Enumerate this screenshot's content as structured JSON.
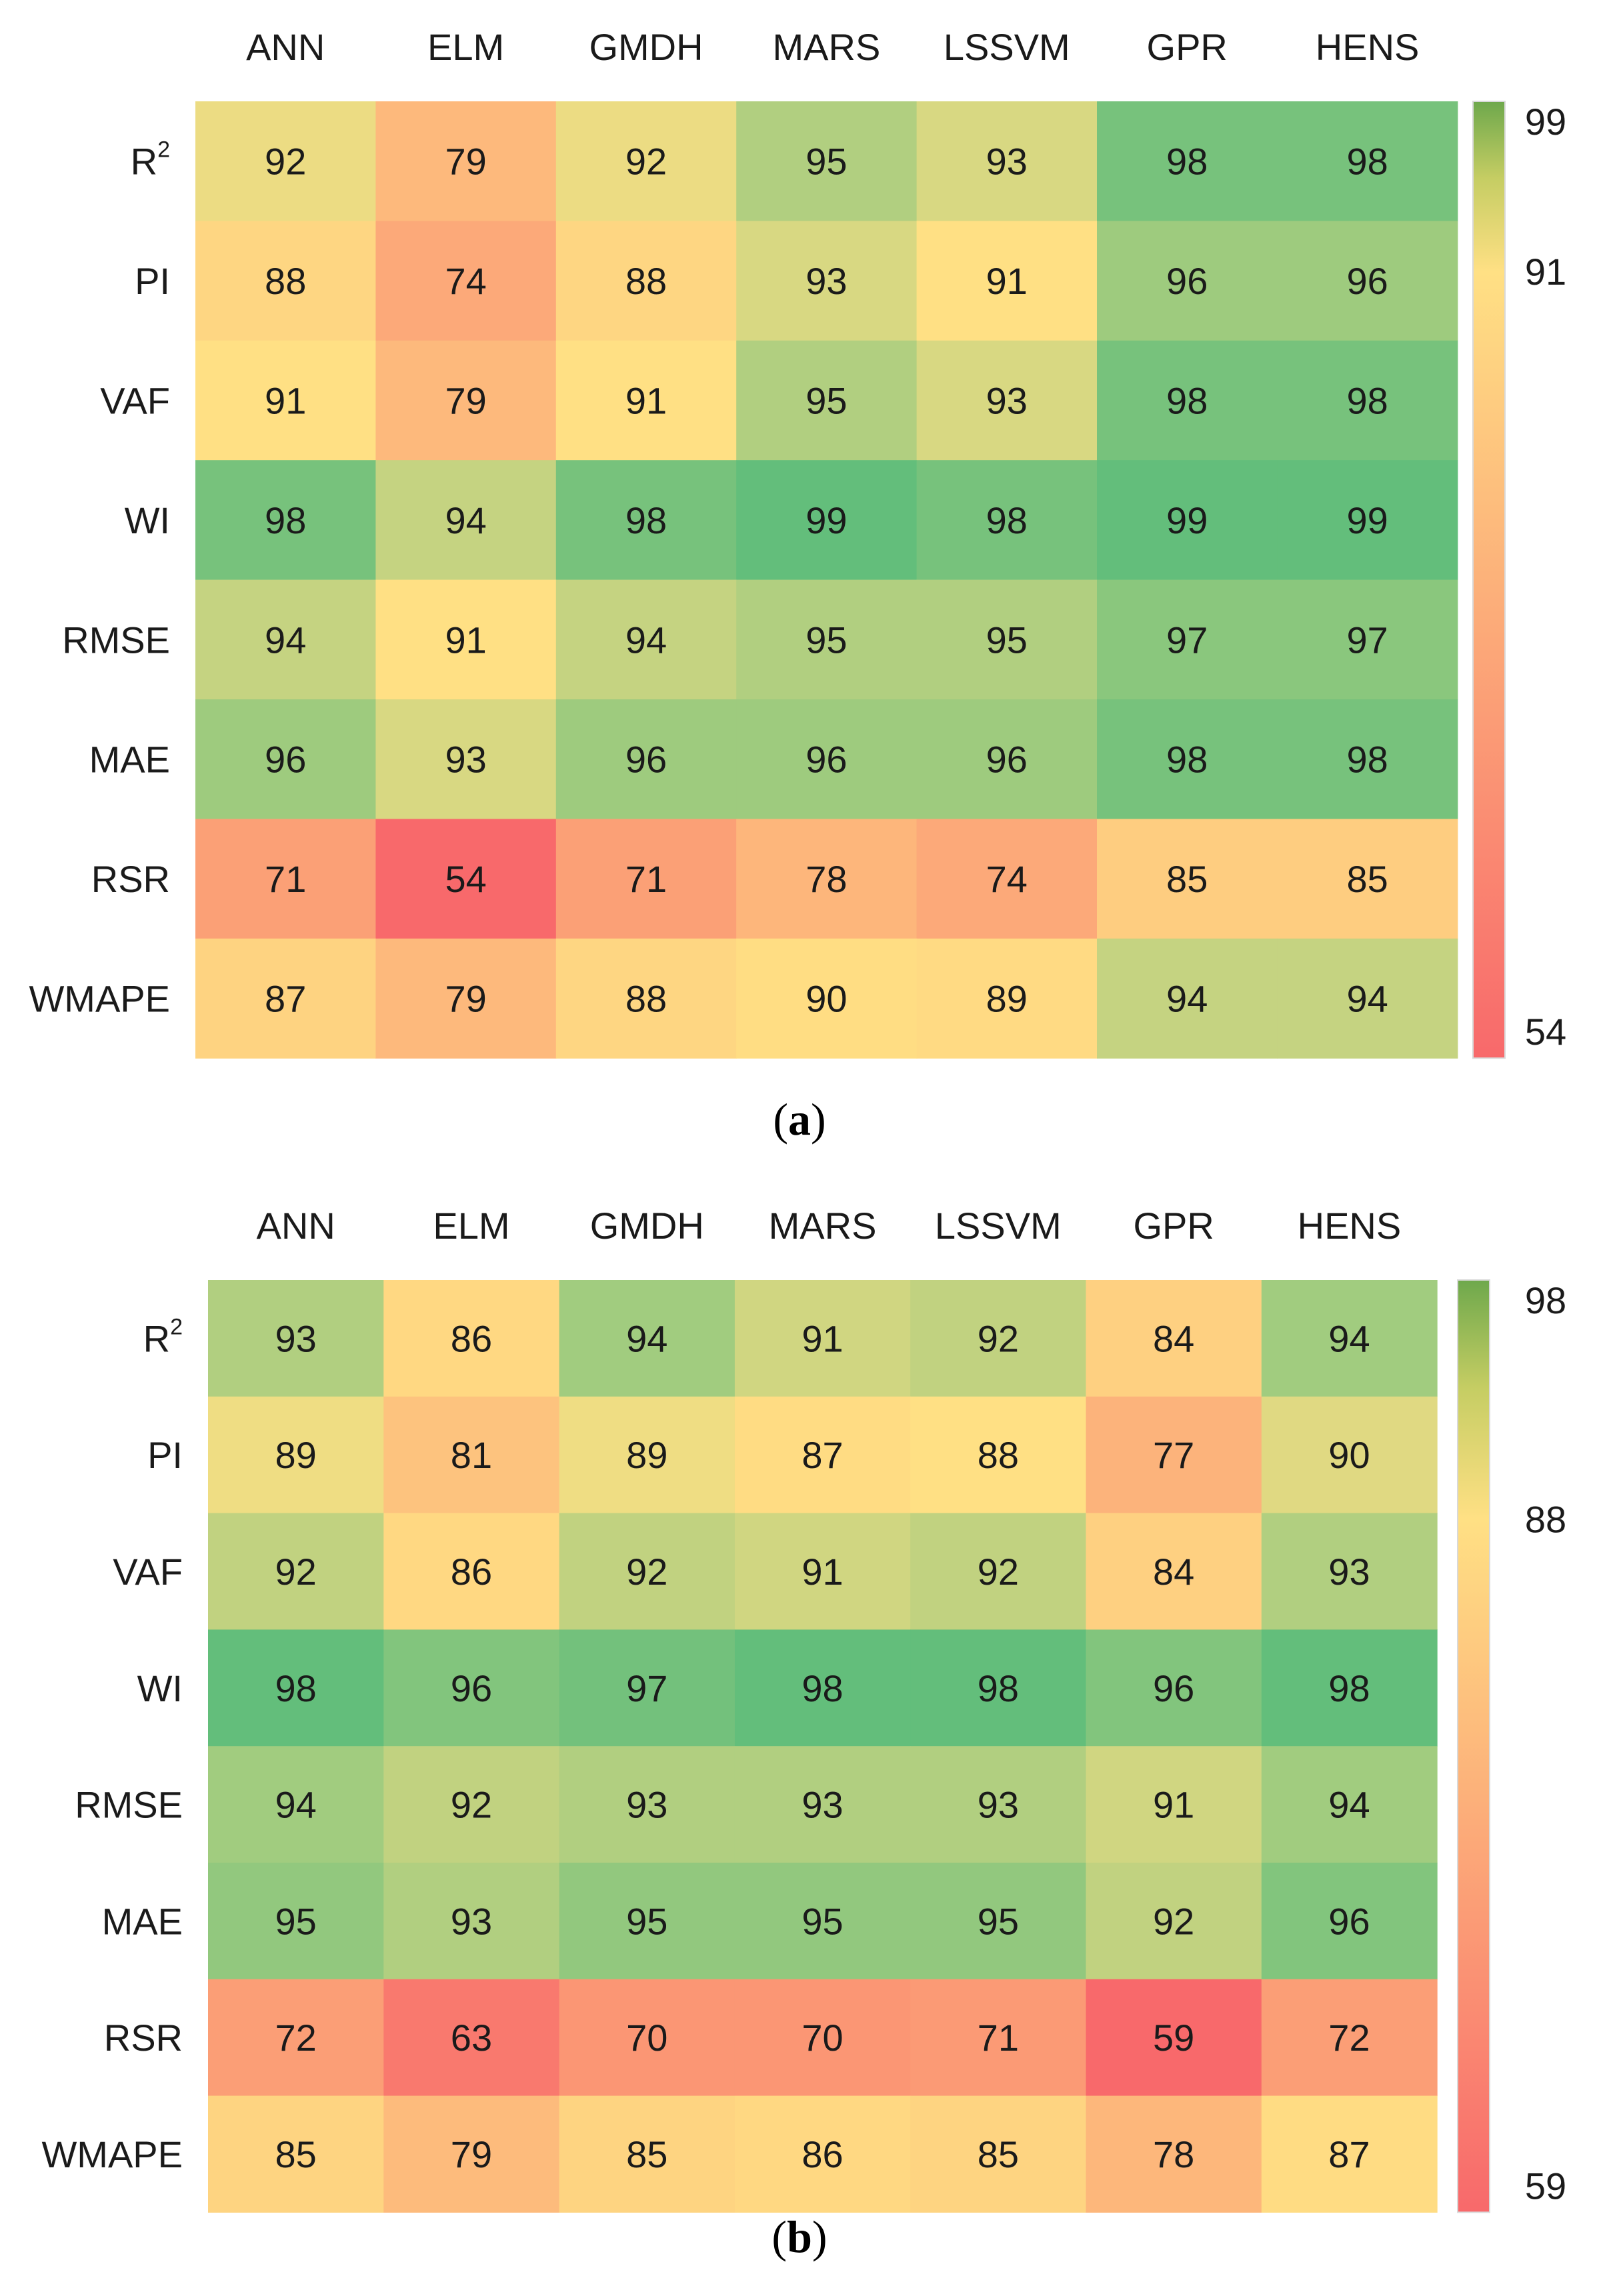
{
  "chart_data": [
    {
      "type": "heatmap",
      "panel_label": "a",
      "columns": [
        "ANN",
        "ELM",
        "GMDH",
        "MARS",
        "LSSVM",
        "GPR",
        "HENS"
      ],
      "rows": [
        "R2",
        "PI",
        "VAF",
        "WI",
        "RMSE",
        "MAE",
        "RSR",
        "WMAPE"
      ],
      "values": [
        [
          92,
          79,
          92,
          95,
          93,
          98,
          98
        ],
        [
          88,
          74,
          88,
          93,
          91,
          96,
          96
        ],
        [
          91,
          79,
          91,
          95,
          93,
          98,
          98
        ],
        [
          98,
          94,
          98,
          99,
          98,
          99,
          99
        ],
        [
          94,
          91,
          94,
          95,
          95,
          97,
          97
        ],
        [
          96,
          93,
          96,
          96,
          96,
          98,
          98
        ],
        [
          71,
          54,
          71,
          78,
          74,
          85,
          85
        ],
        [
          87,
          79,
          88,
          90,
          89,
          94,
          94
        ]
      ],
      "colorbar": {
        "min": 54,
        "mid": 91,
        "max": 99,
        "ticks": [
          "99",
          "91",
          "54"
        ]
      },
      "colors": {
        "low": "#f8696b",
        "mid": "#ffe084",
        "high": "#63be7b"
      }
    },
    {
      "type": "heatmap",
      "panel_label": "b",
      "columns": [
        "ANN",
        "ELM",
        "GMDH",
        "MARS",
        "LSSVM",
        "GPR",
        "HENS"
      ],
      "rows": [
        "R2",
        "PI",
        "VAF",
        "WI",
        "RMSE",
        "MAE",
        "RSR",
        "WMAPE"
      ],
      "values": [
        [
          93,
          86,
          94,
          91,
          92,
          84,
          94
        ],
        [
          89,
          81,
          89,
          87,
          88,
          77,
          90
        ],
        [
          92,
          86,
          92,
          91,
          92,
          84,
          93
        ],
        [
          98,
          96,
          97,
          98,
          98,
          96,
          98
        ],
        [
          94,
          92,
          93,
          93,
          93,
          91,
          94
        ],
        [
          95,
          93,
          95,
          95,
          95,
          92,
          96
        ],
        [
          72,
          63,
          70,
          70,
          71,
          59,
          72
        ],
        [
          85,
          79,
          85,
          86,
          85,
          78,
          87
        ]
      ],
      "colorbar": {
        "min": 59,
        "mid": 88,
        "max": 98,
        "ticks": [
          "98",
          "88",
          "59"
        ]
      },
      "colors": {
        "low": "#f8696b",
        "mid": "#ffe084",
        "high": "#63be7b"
      }
    }
  ]
}
